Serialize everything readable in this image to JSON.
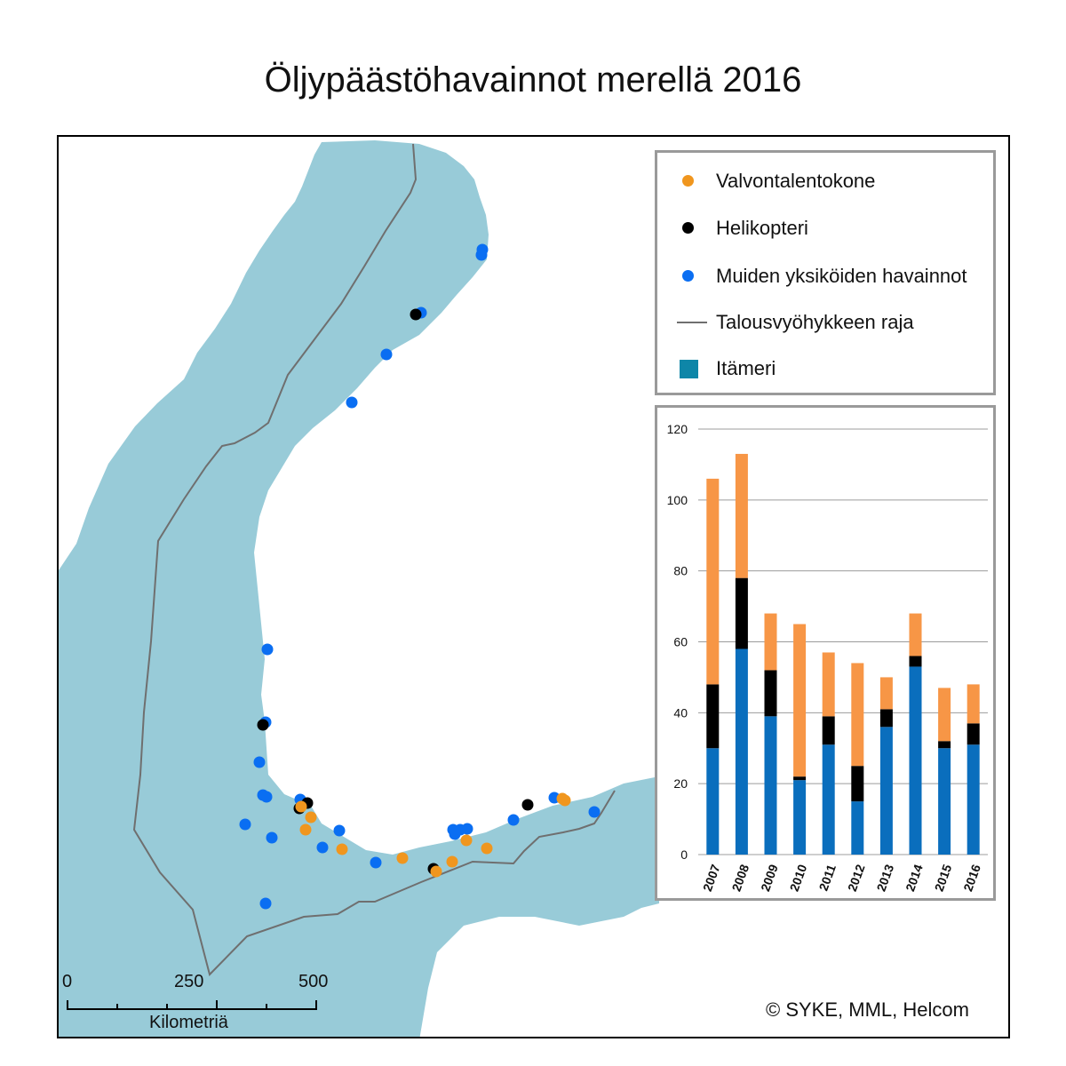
{
  "title": "Öljypäästöhavainnot merellä 2016",
  "colors": {
    "sea": "#98cbd8",
    "land": "#ffffff",
    "aircraft": "#f0961e",
    "helicopter": "#000000",
    "other": "#0a6ef2",
    "eez_line": "#6f6f6f",
    "baltic_legend": "#0e86a8",
    "bar_blue": "#0a6ebd",
    "bar_black": "#000000",
    "bar_orange": "#f79646"
  },
  "legend": {
    "aircraft": "Valvontalentokone",
    "helicopter": "Helikopteri",
    "other": "Muiden yksiköiden havainnot",
    "eez": "Talousvyöhykkeen raja",
    "baltic": "Itämeri"
  },
  "scale_bar": {
    "labels": [
      "0",
      "250",
      "500"
    ],
    "unit": "Kilometriä"
  },
  "copyright": "© SYKE, MML, Helcom",
  "chart_data": {
    "type": "bar",
    "stacked": true,
    "categories": [
      "2007",
      "2008",
      "2009",
      "2010",
      "2011",
      "2012",
      "2013",
      "2014",
      "2015",
      "2016"
    ],
    "series": [
      {
        "name": "Muiden yksiköiden havainnot",
        "values": [
          30,
          58,
          39,
          21,
          31,
          15,
          36,
          53,
          30,
          31
        ]
      },
      {
        "name": "Helikopteri",
        "values": [
          18,
          20,
          13,
          1,
          8,
          10,
          5,
          3,
          2,
          6
        ]
      },
      {
        "name": "Valvontalentokone",
        "values": [
          58,
          35,
          16,
          43,
          18,
          29,
          9,
          12,
          15,
          11
        ]
      }
    ],
    "ylim": [
      0,
      120
    ],
    "yticks": [
      "0",
      "20",
      "40",
      "60",
      "80",
      "100",
      "120"
    ],
    "grid": true
  }
}
